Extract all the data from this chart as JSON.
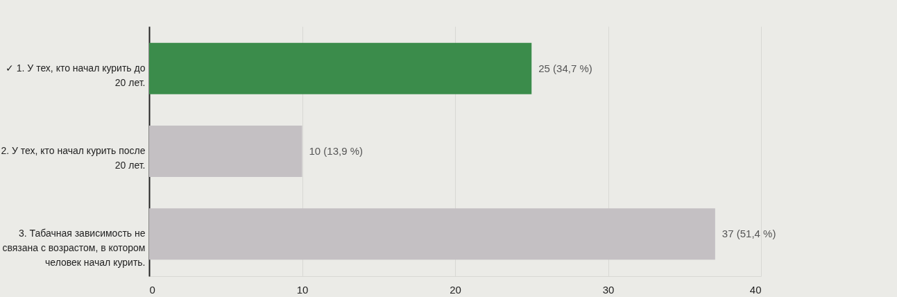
{
  "chart_data": {
    "type": "bar",
    "orientation": "horizontal",
    "categories": [
      "✓ 1. У тех, кто начал курить до 20 лет.",
      "2. У тех, кто начал курить после 20 лет.",
      "3. Табачная зависимость не связана с возрастом, в котором человек начал курить."
    ],
    "values": [
      25,
      10,
      37
    ],
    "colors": [
      "#3b8c4b",
      "#c4c0c3",
      "#c4c0c3"
    ],
    "value_labels": [
      "25 (34,7 %)",
      "10 (13,9 %)",
      "37 (51,4 %)"
    ],
    "xlim": [
      0,
      40
    ],
    "xticks": [
      0,
      10,
      20,
      30,
      40
    ],
    "grid": "x"
  }
}
